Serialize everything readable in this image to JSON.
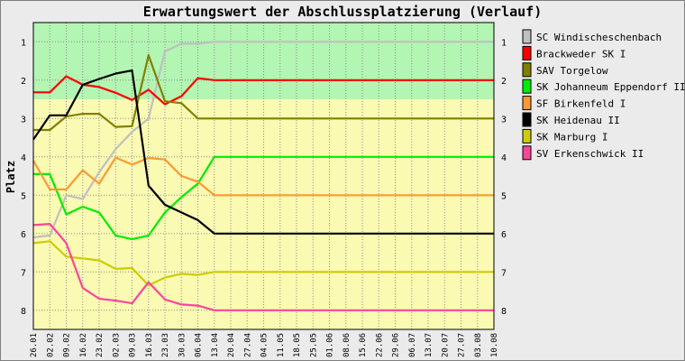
{
  "chart_data": {
    "type": "line",
    "title": "Erwartungswert der Abschlussplatzierung (Verlauf)",
    "xlabel": "",
    "ylabel": "Platz",
    "ylim": [
      0.5,
      8.5
    ],
    "y_inverted": true,
    "yticks": [
      1,
      2,
      3,
      4,
      5,
      6,
      7,
      8
    ],
    "grid": true,
    "legend_position": "right",
    "x": [
      "26.01",
      "02.02",
      "09.02",
      "16.02",
      "23.02",
      "02.03",
      "09.03",
      "16.03",
      "23.03",
      "30.03",
      "06.04",
      "13.04",
      "20.04",
      "27.04",
      "04.05",
      "11.05",
      "18.05",
      "25.05",
      "01.06",
      "08.06",
      "15.06",
      "22.06",
      "29.06",
      "06.07",
      "13.07",
      "20.07",
      "27.07",
      "03.08",
      "10.08"
    ],
    "bands": [
      {
        "from": 0.5,
        "to": 2.5,
        "color": "#b3f5b3"
      },
      {
        "from": 2.5,
        "to": 8.5,
        "color": "#fafab3"
      }
    ],
    "series": [
      {
        "name": "SC Windischeschenbach",
        "color": "#bfbfbf",
        "values": [
          6.1,
          6.05,
          5.0,
          5.1,
          4.4,
          3.8,
          3.35,
          3.0,
          1.25,
          1.05,
          1.05,
          1.0,
          1.0,
          1.0,
          1.0,
          1.0,
          1.0,
          1.0,
          1.0,
          1.0,
          1.0,
          1.0,
          1.0,
          1.0,
          1.0,
          1.0,
          1.0,
          1.0,
          1.0
        ]
      },
      {
        "name": "Brackweder SK I",
        "color": "#ff0000",
        "values": [
          2.32,
          2.32,
          1.9,
          2.12,
          2.18,
          2.33,
          2.52,
          2.25,
          2.63,
          2.42,
          1.95,
          2.0,
          2.0,
          2.0,
          2.0,
          2.0,
          2.0,
          2.0,
          2.0,
          2.0,
          2.0,
          2.0,
          2.0,
          2.0,
          2.0,
          2.0,
          2.0,
          2.0,
          2.0
        ]
      },
      {
        "name": "SAV Torgelow",
        "color": "#808000",
        "values": [
          3.3,
          3.3,
          2.95,
          2.88,
          2.88,
          3.22,
          3.2,
          1.35,
          2.55,
          2.6,
          3.0,
          3.0,
          3.0,
          3.0,
          3.0,
          3.0,
          3.0,
          3.0,
          3.0,
          3.0,
          3.0,
          3.0,
          3.0,
          3.0,
          3.0,
          3.0,
          3.0,
          3.0,
          3.0
        ]
      },
      {
        "name": "SK Johanneum Eppendorf III",
        "color": "#00ee00",
        "values": [
          4.45,
          4.45,
          5.5,
          5.3,
          5.45,
          6.05,
          6.15,
          6.05,
          5.45,
          5.05,
          4.7,
          4.0,
          4.0,
          4.0,
          4.0,
          4.0,
          4.0,
          4.0,
          4.0,
          4.0,
          4.0,
          4.0,
          4.0,
          4.0,
          4.0,
          4.0,
          4.0,
          4.0,
          4.0
        ]
      },
      {
        "name": "SF Birkenfeld I",
        "color": "#ff9933",
        "values": [
          4.1,
          4.85,
          4.85,
          4.35,
          4.7,
          4.02,
          4.2,
          4.03,
          4.07,
          4.5,
          4.65,
          5.0,
          5.0,
          5.0,
          5.0,
          5.0,
          5.0,
          5.0,
          5.0,
          5.0,
          5.0,
          5.0,
          5.0,
          5.0,
          5.0,
          5.0,
          5.0,
          5.0,
          5.0
        ]
      },
      {
        "name": "SK Heidenau II",
        "color": "#000000",
        "values": [
          3.55,
          2.92,
          2.92,
          2.12,
          1.97,
          1.83,
          1.75,
          4.75,
          5.25,
          5.45,
          5.65,
          6.0,
          6.0,
          6.0,
          6.0,
          6.0,
          6.0,
          6.0,
          6.0,
          6.0,
          6.0,
          6.0,
          6.0,
          6.0,
          6.0,
          6.0,
          6.0,
          6.0,
          6.0
        ]
      },
      {
        "name": "SK Marburg I",
        "color": "#cccc00",
        "values": [
          6.25,
          6.2,
          6.6,
          6.65,
          6.7,
          6.92,
          6.9,
          7.35,
          7.15,
          7.05,
          7.08,
          7.0,
          7.0,
          7.0,
          7.0,
          7.0,
          7.0,
          7.0,
          7.0,
          7.0,
          7.0,
          7.0,
          7.0,
          7.0,
          7.0,
          7.0,
          7.0,
          7.0,
          7.0
        ]
      },
      {
        "name": "SV Erkenschwick II",
        "color": "#ff4499",
        "values": [
          5.78,
          5.75,
          6.25,
          7.42,
          7.7,
          7.75,
          7.82,
          7.27,
          7.72,
          7.85,
          7.88,
          8.0,
          8.0,
          8.0,
          8.0,
          8.0,
          8.0,
          8.0,
          8.0,
          8.0,
          8.0,
          8.0,
          8.0,
          8.0,
          8.0,
          8.0,
          8.0,
          8.0,
          8.0
        ]
      }
    ]
  }
}
